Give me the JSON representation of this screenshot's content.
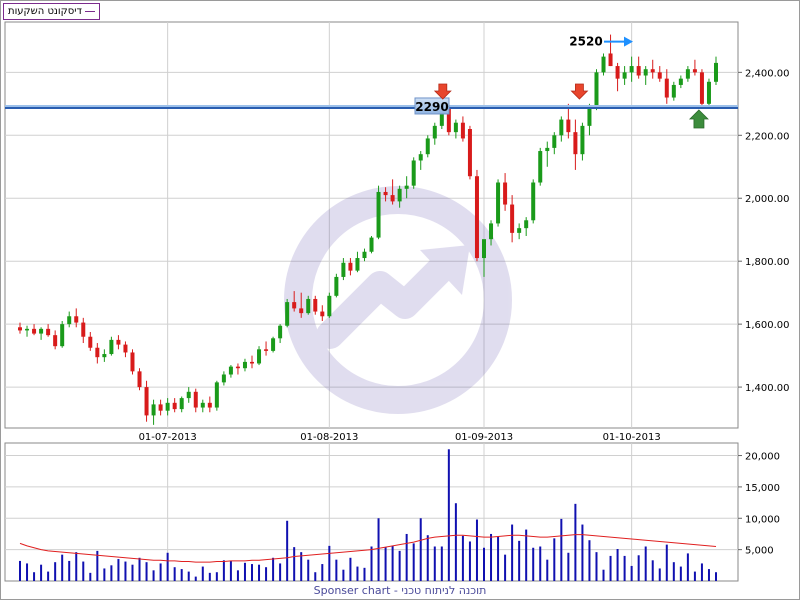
{
  "legend": {
    "label": "דיסקונט השקעות",
    "color": "#7b2b8c"
  },
  "footer": "Sponser chart - תוכנה לניתוח טכני",
  "annotations": {
    "high_label": "2520",
    "level_label": "2290",
    "level_value": 2290,
    "high_value": 2520
  },
  "colors": {
    "up": "#1a9a1a",
    "down": "#d81b1b",
    "volume": "#1010b0",
    "avg": "#e02020",
    "level": "#2a5db0",
    "arrow_down": "#e8452c",
    "arrow_up": "#3c8c3c",
    "arrow_blue": "#1e90ff"
  },
  "chart_data": [
    {
      "type": "candlestick",
      "x_tick_labels": [
        "01-07-2013",
        "01-08-2013",
        "01-09-2013",
        "01-10-2013"
      ],
      "y_tick_labels": [
        "1,400.00",
        "1,600.00",
        "1,800.00",
        "2,000.00",
        "2,200.00",
        "2,400.00"
      ],
      "y_ticks": [
        1400,
        1600,
        1800,
        2000,
        2200,
        2400
      ],
      "ylim": [
        1270,
        2560
      ],
      "candles": [
        [
          1590,
          1605,
          1570,
          1580
        ],
        [
          1580,
          1595,
          1560,
          1585
        ],
        [
          1585,
          1600,
          1565,
          1570
        ],
        [
          1570,
          1590,
          1550,
          1585
        ],
        [
          1585,
          1600,
          1560,
          1565
        ],
        [
          1565,
          1580,
          1520,
          1530
        ],
        [
          1530,
          1610,
          1525,
          1600
        ],
        [
          1600,
          1640,
          1590,
          1625
        ],
        [
          1625,
          1650,
          1590,
          1605
        ],
        [
          1605,
          1620,
          1540,
          1560
        ],
        [
          1560,
          1575,
          1515,
          1525
        ],
        [
          1525,
          1540,
          1475,
          1495
        ],
        [
          1495,
          1520,
          1480,
          1505
        ],
        [
          1505,
          1560,
          1500,
          1550
        ],
        [
          1550,
          1565,
          1520,
          1535
        ],
        [
          1535,
          1545,
          1495,
          1510
        ],
        [
          1510,
          1520,
          1440,
          1450
        ],
        [
          1450,
          1460,
          1390,
          1400
        ],
        [
          1400,
          1420,
          1290,
          1310
        ],
        [
          1310,
          1360,
          1280,
          1345
        ],
        [
          1345,
          1360,
          1310,
          1325
        ],
        [
          1325,
          1365,
          1310,
          1350
        ],
        [
          1350,
          1365,
          1320,
          1330
        ],
        [
          1330,
          1370,
          1320,
          1365
        ],
        [
          1365,
          1400,
          1350,
          1385
        ],
        [
          1385,
          1395,
          1320,
          1335
        ],
        [
          1335,
          1360,
          1320,
          1350
        ],
        [
          1350,
          1370,
          1320,
          1335
        ],
        [
          1335,
          1420,
          1325,
          1415
        ],
        [
          1415,
          1450,
          1405,
          1440
        ],
        [
          1440,
          1470,
          1430,
          1465
        ],
        [
          1465,
          1475,
          1440,
          1460
        ],
        [
          1460,
          1490,
          1450,
          1480
        ],
        [
          1480,
          1500,
          1460,
          1475
        ],
        [
          1475,
          1530,
          1470,
          1520
        ],
        [
          1520,
          1545,
          1500,
          1515
        ],
        [
          1515,
          1560,
          1510,
          1555
        ],
        [
          1555,
          1600,
          1540,
          1595
        ],
        [
          1595,
          1680,
          1590,
          1670
        ],
        [
          1670,
          1705,
          1640,
          1650
        ],
        [
          1650,
          1700,
          1620,
          1635
        ],
        [
          1635,
          1690,
          1630,
          1680
        ],
        [
          1680,
          1690,
          1630,
          1640
        ],
        [
          1640,
          1660,
          1610,
          1625
        ],
        [
          1625,
          1700,
          1620,
          1690
        ],
        [
          1690,
          1760,
          1685,
          1750
        ],
        [
          1750,
          1810,
          1740,
          1795
        ],
        [
          1795,
          1810,
          1755,
          1770
        ],
        [
          1770,
          1830,
          1765,
          1810
        ],
        [
          1810,
          1840,
          1800,
          1830
        ],
        [
          1830,
          1880,
          1825,
          1875
        ],
        [
          1875,
          2040,
          1870,
          2020
        ],
        [
          2020,
          2035,
          1990,
          2010
        ],
        [
          2010,
          2060,
          1980,
          1990
        ],
        [
          1990,
          2040,
          1970,
          2030
        ],
        [
          2030,
          2070,
          2000,
          2040
        ],
        [
          2040,
          2130,
          2030,
          2120
        ],
        [
          2120,
          2150,
          2090,
          2140
        ],
        [
          2140,
          2200,
          2130,
          2190
        ],
        [
          2190,
          2240,
          2170,
          2230
        ],
        [
          2230,
          2300,
          2220,
          2290
        ],
        [
          2290,
          2300,
          2200,
          2210
        ],
        [
          2210,
          2250,
          2190,
          2240
        ],
        [
          2240,
          2260,
          2180,
          2190
        ],
        [
          2220,
          2230,
          2060,
          2070
        ],
        [
          2070,
          2090,
          1800,
          1810
        ],
        [
          1810,
          1860,
          1750,
          1870
        ],
        [
          1870,
          1930,
          1850,
          1920
        ],
        [
          1920,
          2060,
          1910,
          2050
        ],
        [
          2050,
          2080,
          1960,
          1980
        ],
        [
          1980,
          2010,
          1860,
          1890
        ],
        [
          1890,
          1920,
          1870,
          1905
        ],
        [
          1905,
          1940,
          1880,
          1930
        ],
        [
          1930,
          2060,
          1920,
          2050
        ],
        [
          2050,
          2160,
          2040,
          2150
        ],
        [
          2150,
          2180,
          2100,
          2160
        ],
        [
          2160,
          2210,
          2140,
          2200
        ],
        [
          2200,
          2260,
          2180,
          2250
        ],
        [
          2250,
          2300,
          2190,
          2210
        ],
        [
          2210,
          2250,
          2090,
          2140
        ],
        [
          2140,
          2240,
          2120,
          2230
        ],
        [
          2230,
          2300,
          2200,
          2290
        ],
        [
          2290,
          2410,
          2280,
          2400
        ],
        [
          2400,
          2460,
          2390,
          2450
        ],
        [
          2460,
          2520,
          2420,
          2420
        ],
        [
          2420,
          2430,
          2340,
          2380
        ],
        [
          2380,
          2420,
          2360,
          2400
        ],
        [
          2400,
          2450,
          2370,
          2420
        ],
        [
          2420,
          2450,
          2380,
          2390
        ],
        [
          2390,
          2420,
          2360,
          2410
        ],
        [
          2410,
          2440,
          2380,
          2400
        ],
        [
          2400,
          2420,
          2370,
          2380
        ],
        [
          2380,
          2410,
          2300,
          2320
        ],
        [
          2320,
          2370,
          2310,
          2360
        ],
        [
          2360,
          2390,
          2350,
          2380
        ],
        [
          2380,
          2420,
          2370,
          2410
        ],
        [
          2410,
          2440,
          2390,
          2400
        ],
        [
          2400,
          2410,
          2290,
          2300
        ],
        [
          2300,
          2380,
          2290,
          2370
        ],
        [
          2370,
          2450,
          2360,
          2430
        ]
      ]
    },
    {
      "type": "bar",
      "series": [
        {
          "values": [
            3200,
            2800,
            1400,
            2600,
            1500,
            3000,
            4200,
            3200,
            4600,
            3100,
            1300,
            4800,
            2000,
            2500,
            3500,
            3100,
            2600,
            3700,
            3000,
            1700,
            2800,
            4500,
            2200,
            1900,
            1500,
            700,
            2300,
            1300,
            1400,
            3300,
            3200,
            1700,
            2900,
            2700,
            2600,
            2200,
            3700,
            2800,
            9600,
            5400,
            4600,
            3400,
            1400,
            2700,
            5600,
            3400,
            1800,
            3700,
            2300,
            2100,
            5500,
            10000,
            5400,
            5600,
            4800,
            7500,
            6000,
            10000,
            7300,
            5500,
            5500,
            21000,
            12400,
            7200,
            6300,
            9800,
            5300,
            7500,
            7100,
            4200,
            9000,
            6400,
            8200,
            5300,
            5500,
            3400,
            6800,
            9900,
            4500,
            12300,
            9000,
            6500,
            4600,
            1800,
            4000,
            5100,
            4000,
            2400,
            4100,
            5500,
            3300,
            2000,
            5800,
            3000,
            2300,
            4400,
            1500,
            2800,
            1900,
            1400
          ]
        },
        {
          "values": [
            6000,
            5600,
            5300,
            5000,
            4800,
            4700,
            4600,
            4500,
            4400,
            4300,
            4200,
            4100,
            4000,
            3900,
            3800,
            3700,
            3600,
            3500,
            3400,
            3300,
            3300,
            3200,
            3200,
            3100,
            3100,
            3000,
            3000,
            3000,
            3100,
            3100,
            3200,
            3200,
            3200,
            3300,
            3300,
            3400,
            3500,
            3600,
            3700,
            3900,
            4000,
            4100,
            4200,
            4300,
            4400,
            4500,
            4600,
            4700,
            4800,
            4900,
            5000,
            5200,
            5400,
            5600,
            5800,
            6000,
            6200,
            6500,
            6800,
            7000,
            7100,
            7200,
            7300,
            7300,
            7200,
            7100,
            7000,
            7000,
            7100,
            7200,
            7300,
            7300,
            7200,
            7100,
            7000,
            7000,
            7100,
            7200,
            7300,
            7400,
            7400,
            7300,
            7200,
            7100,
            7000,
            6900,
            6800,
            6700,
            6600,
            6500,
            6400,
            6300,
            6200,
            6100,
            6000,
            5900,
            5800,
            5700,
            5600,
            5500
          ]
        }
      ],
      "y_tick_labels": [
        "5,000",
        "10,000",
        "15,000",
        "20,000"
      ],
      "y_ticks": [
        5000,
        10000,
        15000,
        20000
      ],
      "ylim": [
        0,
        22000
      ]
    }
  ]
}
